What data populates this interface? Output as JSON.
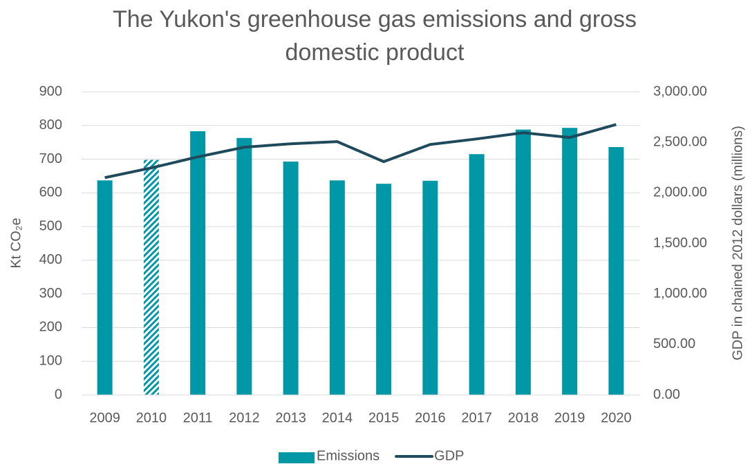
{
  "chart_data": {
    "type": "bar_line",
    "title": "The Yukon's greenhouse gas emissions and gross domestic product",
    "y_label": "Kt CO₂e",
    "y2_label": "GDP in chained 2012 dollars (millions)",
    "categories": [
      "2009",
      "2010",
      "2011",
      "2012",
      "2013",
      "2014",
      "2015",
      "2016",
      "2017",
      "2018",
      "2019",
      "2020"
    ],
    "series": [
      {
        "name": "Emissions",
        "type": "bar",
        "color": "#0097a7",
        "hatched": [
          "2010"
        ],
        "values": [
          637,
          698,
          783,
          763,
          693,
          637,
          627,
          636,
          715,
          788,
          793,
          736
        ]
      },
      {
        "name": "GDP",
        "type": "line",
        "axis": "y2",
        "color": "#1f4a5c",
        "values": [
          2151,
          2247,
          2356,
          2452,
          2486,
          2507,
          2309,
          2479,
          2534,
          2595,
          2548,
          2677
        ]
      }
    ],
    "ylim": [
      0,
      900
    ],
    "yticks": [
      0,
      100,
      200,
      300,
      400,
      500,
      600,
      700,
      800,
      900
    ],
    "y2lim": [
      0,
      3000
    ],
    "y2ticks": [
      {
        "value": 0,
        "label": "0.00"
      },
      {
        "value": 500,
        "label": "500.00"
      },
      {
        "value": 1000,
        "label": "1,000.00"
      },
      {
        "value": 1500,
        "label": "1,500.00"
      },
      {
        "value": 2000,
        "label": "2,000.00"
      },
      {
        "value": 2500,
        "label": "2,500.00"
      },
      {
        "value": 3000,
        "label": "3,000.00"
      }
    ],
    "grid": true,
    "legend": "bottom"
  }
}
